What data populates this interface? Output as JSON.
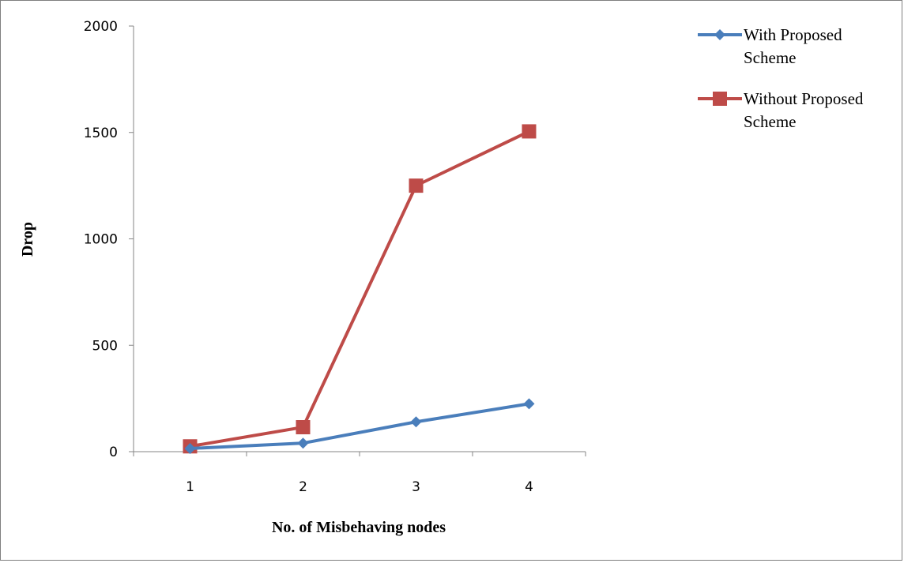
{
  "chart_data": {
    "type": "line",
    "categories": [
      "1",
      "2",
      "3",
      "4"
    ],
    "x": [
      1,
      2,
      3,
      4
    ],
    "series": [
      {
        "name": "With Proposed Scheme",
        "values": [
          15,
          40,
          140,
          225
        ],
        "color": "#4a7ebb",
        "marker": "diamond"
      },
      {
        "name": "Without Proposed Scheme",
        "values": [
          25,
          115,
          1250,
          1505
        ],
        "color": "#be4b48",
        "marker": "square"
      }
    ],
    "title": "",
    "xlabel": "No. of Misbehaving nodes",
    "ylabel": "Drop",
    "ylim": [
      0,
      2000
    ],
    "yticks": [
      0,
      500,
      1000,
      1500,
      2000
    ],
    "grid": false,
    "legend_position": "top-right"
  }
}
